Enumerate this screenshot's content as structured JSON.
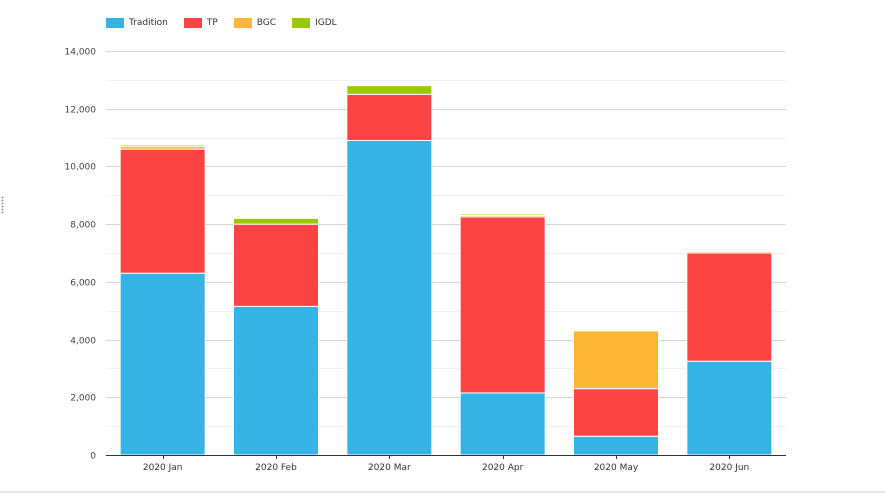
{
  "chart_data": {
    "type": "bar",
    "stacked": true,
    "categories": [
      "2020 Jan",
      "2020 Feb",
      "2020 Mar",
      "2020 Apr",
      "2020 May",
      "2020 Jun"
    ],
    "series": [
      {
        "name": "Tradition",
        "color": "#35b3e5",
        "values": [
          6300,
          5150,
          10900,
          2150,
          650,
          3250
        ]
      },
      {
        "name": "TP",
        "color": "#fd4444",
        "values": [
          4300,
          2850,
          1600,
          6100,
          1650,
          3750
        ]
      },
      {
        "name": "BGC",
        "color": "#fdb636",
        "values": [
          100,
          0,
          0,
          50,
          2000,
          50
        ]
      },
      {
        "name": "IGDL",
        "color": "#98c902",
        "values": [
          50,
          200,
          300,
          50,
          0,
          0
        ]
      }
    ],
    "ylim": [
      0,
      14000
    ],
    "yticks": [
      "0",
      "2,000",
      "4,000",
      "6,000",
      "8,000",
      "10,000",
      "12,000",
      "14,000"
    ],
    "ytick_values": [
      0,
      2000,
      4000,
      6000,
      8000,
      10000,
      12000,
      14000
    ],
    "grid": true,
    "legend_position": "top-left"
  }
}
